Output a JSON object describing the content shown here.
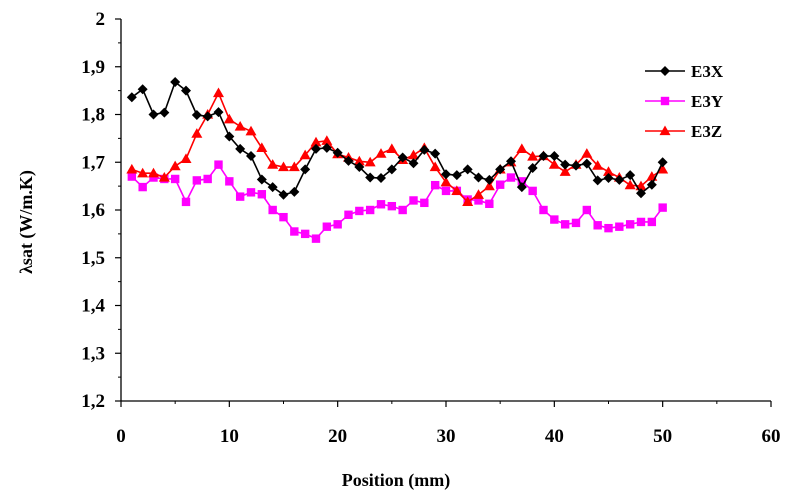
{
  "chart_data": {
    "type": "line",
    "xlabel": "Position (mm)",
    "ylabel": "λsat  (W/m.K)",
    "xlim": [
      0,
      60
    ],
    "ylim": [
      1.2,
      2.0
    ],
    "xticks": [
      0,
      10,
      20,
      30,
      40,
      50,
      60
    ],
    "yticks": [
      1.2,
      1.3,
      1.4,
      1.5,
      1.6,
      1.7,
      1.8,
      1.9,
      2.0
    ],
    "ytick_labels": [
      "1,2",
      "1,3",
      "1,4",
      "1,5",
      "1,6",
      "1,7",
      "1,8",
      "1,9",
      "2"
    ],
    "grid": false,
    "legend_position": "top-right",
    "x": [
      1,
      2,
      3,
      4,
      5,
      6,
      7,
      8,
      9,
      10,
      11,
      12,
      13,
      14,
      15,
      16,
      17,
      18,
      19,
      20,
      21,
      22,
      23,
      24,
      25,
      26,
      27,
      28,
      29,
      30,
      31,
      32,
      33,
      34,
      35,
      36,
      37,
      38,
      39,
      40,
      41,
      42,
      43,
      44,
      45,
      46,
      47,
      48,
      49,
      50
    ],
    "series": [
      {
        "name": "E3X",
        "color": "#000000",
        "marker": "diamond",
        "values": [
          1.836,
          1.853,
          1.8,
          1.804,
          1.868,
          1.85,
          1.799,
          1.796,
          1.805,
          1.754,
          1.728,
          1.713,
          1.664,
          1.648,
          1.632,
          1.638,
          1.685,
          1.728,
          1.73,
          1.72,
          1.703,
          1.69,
          1.668,
          1.667,
          1.685,
          1.71,
          1.698,
          1.726,
          1.718,
          1.675,
          1.673,
          1.685,
          1.668,
          1.663,
          1.685,
          1.702,
          1.648,
          1.688,
          1.713,
          1.713,
          1.695,
          1.693,
          1.697,
          1.662,
          1.667,
          1.663,
          1.673,
          1.635,
          1.653,
          1.7
        ]
      },
      {
        "name": "E3Y",
        "color": "#ff00ff",
        "marker": "square",
        "values": [
          1.67,
          1.648,
          1.668,
          1.665,
          1.665,
          1.617,
          1.662,
          1.665,
          1.695,
          1.66,
          1.628,
          1.637,
          1.633,
          1.6,
          1.585,
          1.555,
          1.55,
          1.54,
          1.565,
          1.57,
          1.59,
          1.598,
          1.6,
          1.612,
          1.608,
          1.6,
          1.62,
          1.615,
          1.652,
          1.64,
          1.64,
          1.622,
          1.62,
          1.613,
          1.653,
          1.668,
          1.66,
          1.64,
          1.6,
          1.58,
          1.57,
          1.573,
          1.6,
          1.568,
          1.562,
          1.565,
          1.57,
          1.575,
          1.575,
          1.605
        ]
      },
      {
        "name": "E3Z",
        "color": "#ff0000",
        "marker": "triangle",
        "values": [
          1.685,
          1.677,
          1.677,
          1.668,
          1.692,
          1.707,
          1.76,
          1.8,
          1.845,
          1.79,
          1.775,
          1.765,
          1.73,
          1.695,
          1.69,
          1.69,
          1.715,
          1.742,
          1.745,
          1.717,
          1.71,
          1.702,
          1.7,
          1.718,
          1.728,
          1.705,
          1.715,
          1.73,
          1.69,
          1.658,
          1.64,
          1.617,
          1.632,
          1.65,
          1.685,
          1.7,
          1.728,
          1.712,
          1.713,
          1.695,
          1.68,
          1.695,
          1.718,
          1.693,
          1.68,
          1.668,
          1.652,
          1.65,
          1.67,
          1.685
        ]
      }
    ]
  }
}
